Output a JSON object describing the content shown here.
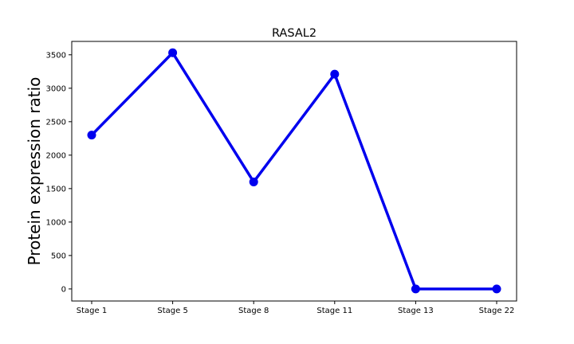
{
  "chart_data": {
    "type": "line",
    "title": "RASAL2",
    "xlabel": "",
    "ylabel": "Protein expression ratio",
    "categories": [
      "Stage 1",
      "Stage 5",
      "Stage 8",
      "Stage 11",
      "Stage 13",
      "Stage 22"
    ],
    "series": [
      {
        "values": [
          2300,
          3530,
          1600,
          3210,
          0,
          0
        ],
        "color": "#0000ee"
      }
    ],
    "yticks": [
      0,
      500,
      1000,
      1500,
      2000,
      2500,
      3000,
      3500
    ],
    "ylim": [
      -180,
      3700
    ],
    "grid": false,
    "legend": "none"
  }
}
